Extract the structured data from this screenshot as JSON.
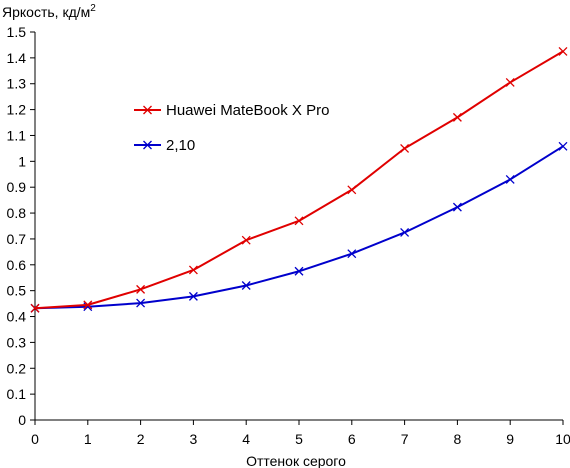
{
  "chart_data": {
    "type": "line",
    "title": "",
    "ylabel": "Яркость, кд/м",
    "ylabel_superscript": "2",
    "xlabel": "Оттенок серого",
    "x": [
      0,
      1,
      2,
      3,
      4,
      5,
      6,
      7,
      8,
      9,
      10
    ],
    "xlim": [
      0,
      10
    ],
    "ylim": [
      0,
      1.5
    ],
    "x_ticks": [
      "0",
      "1",
      "2",
      "3",
      "4",
      "5",
      "6",
      "7",
      "8",
      "9",
      "10"
    ],
    "y_ticks": [
      "0",
      "0.1",
      "0.2",
      "0.3",
      "0.4",
      "0.5",
      "0.6",
      "0.7",
      "0.8",
      "0.9",
      "1",
      "1.1",
      "1.2",
      "1.3",
      "1.4",
      "1.5"
    ],
    "grid": false,
    "legend_position": "top-left inside plot",
    "series": [
      {
        "name": "Huawei MateBook X Pro",
        "color": "#e00000",
        "marker": "x",
        "values": [
          0.432,
          0.445,
          0.505,
          0.58,
          0.695,
          0.77,
          0.89,
          1.05,
          1.17,
          1.305,
          1.425
        ]
      },
      {
        "name": "2,10",
        "color": "#0000cc",
        "marker": "x",
        "values": [
          0.432,
          0.438,
          0.452,
          0.478,
          0.52,
          0.575,
          0.643,
          0.725,
          0.823,
          0.93,
          1.058
        ]
      }
    ]
  }
}
